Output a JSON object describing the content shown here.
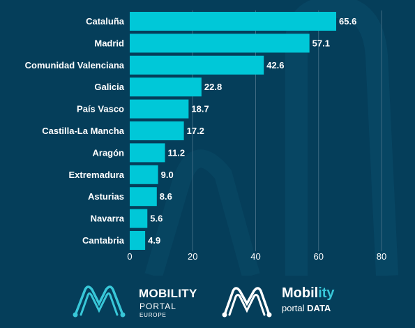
{
  "colors": {
    "background": "#053e5a",
    "bar": "#00c8d8",
    "grid": "#3f6a82",
    "text": "#ffffff",
    "accent": "#38c7d8"
  },
  "chart_data": {
    "type": "bar",
    "orientation": "horizontal",
    "categories": [
      "Cataluña",
      "Madrid",
      "Comunidad Valenciana",
      "Galicia",
      "País Vasco",
      "Castilla-La Mancha",
      "Aragón",
      "Extremadura",
      "Asturias",
      "Navarra",
      "Cantabria"
    ],
    "values": [
      65.6,
      57.1,
      42.6,
      22.8,
      18.7,
      17.2,
      11.2,
      9.0,
      8.6,
      5.6,
      4.9
    ],
    "value_labels": [
      "65.6",
      "57.1",
      "42.6",
      "22.8",
      "18.7",
      "17.2",
      "11.2",
      "9.0",
      "8.6",
      "5.6",
      "4.9"
    ],
    "xlim": [
      0,
      80
    ],
    "xticks": [
      0,
      20,
      40,
      60,
      80
    ],
    "xlabel": "",
    "ylabel": "",
    "title": "",
    "grid": true
  },
  "logos": {
    "left": {
      "line1": "MOBILITY",
      "line2": "PORTAL",
      "line3": "EUROPE",
      "icon": "mobility-portal-m-icon"
    },
    "right": {
      "line1a": "Mobil",
      "line1b": "ity",
      "line2a": "portal ",
      "line2b": "DATA",
      "icon": "mobility-data-m-icon"
    }
  }
}
